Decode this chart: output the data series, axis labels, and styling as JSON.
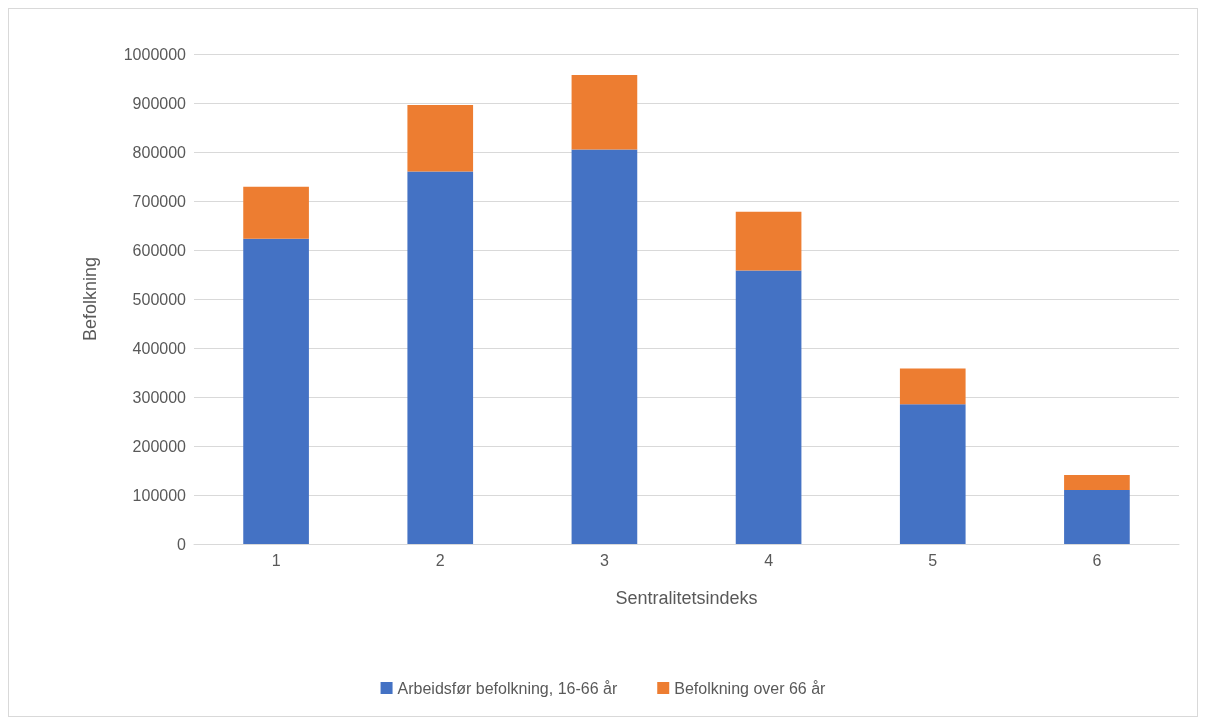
{
  "chart_data": {
    "type": "bar",
    "stacked": true,
    "xlabel": "Sentralitetsindeks",
    "ylabel": "Befolkning",
    "categories": [
      "1",
      "2",
      "3",
      "4",
      "5",
      "6"
    ],
    "series": [
      {
        "name": "Arbeidsfør befolkning, 16-66 år",
        "color": "#4472c4",
        "values": [
          623000,
          760000,
          805000,
          558000,
          285000,
          110000
        ]
      },
      {
        "name": "Befolkning over 66 år",
        "color": "#ed7d31",
        "values": [
          106000,
          136000,
          152000,
          120000,
          73000,
          31000
        ]
      }
    ],
    "ylim": [
      0,
      1000000
    ],
    "yticks": [
      0,
      100000,
      200000,
      300000,
      400000,
      500000,
      600000,
      700000,
      800000,
      900000,
      1000000
    ],
    "grid": "y",
    "legend": "bottom"
  }
}
